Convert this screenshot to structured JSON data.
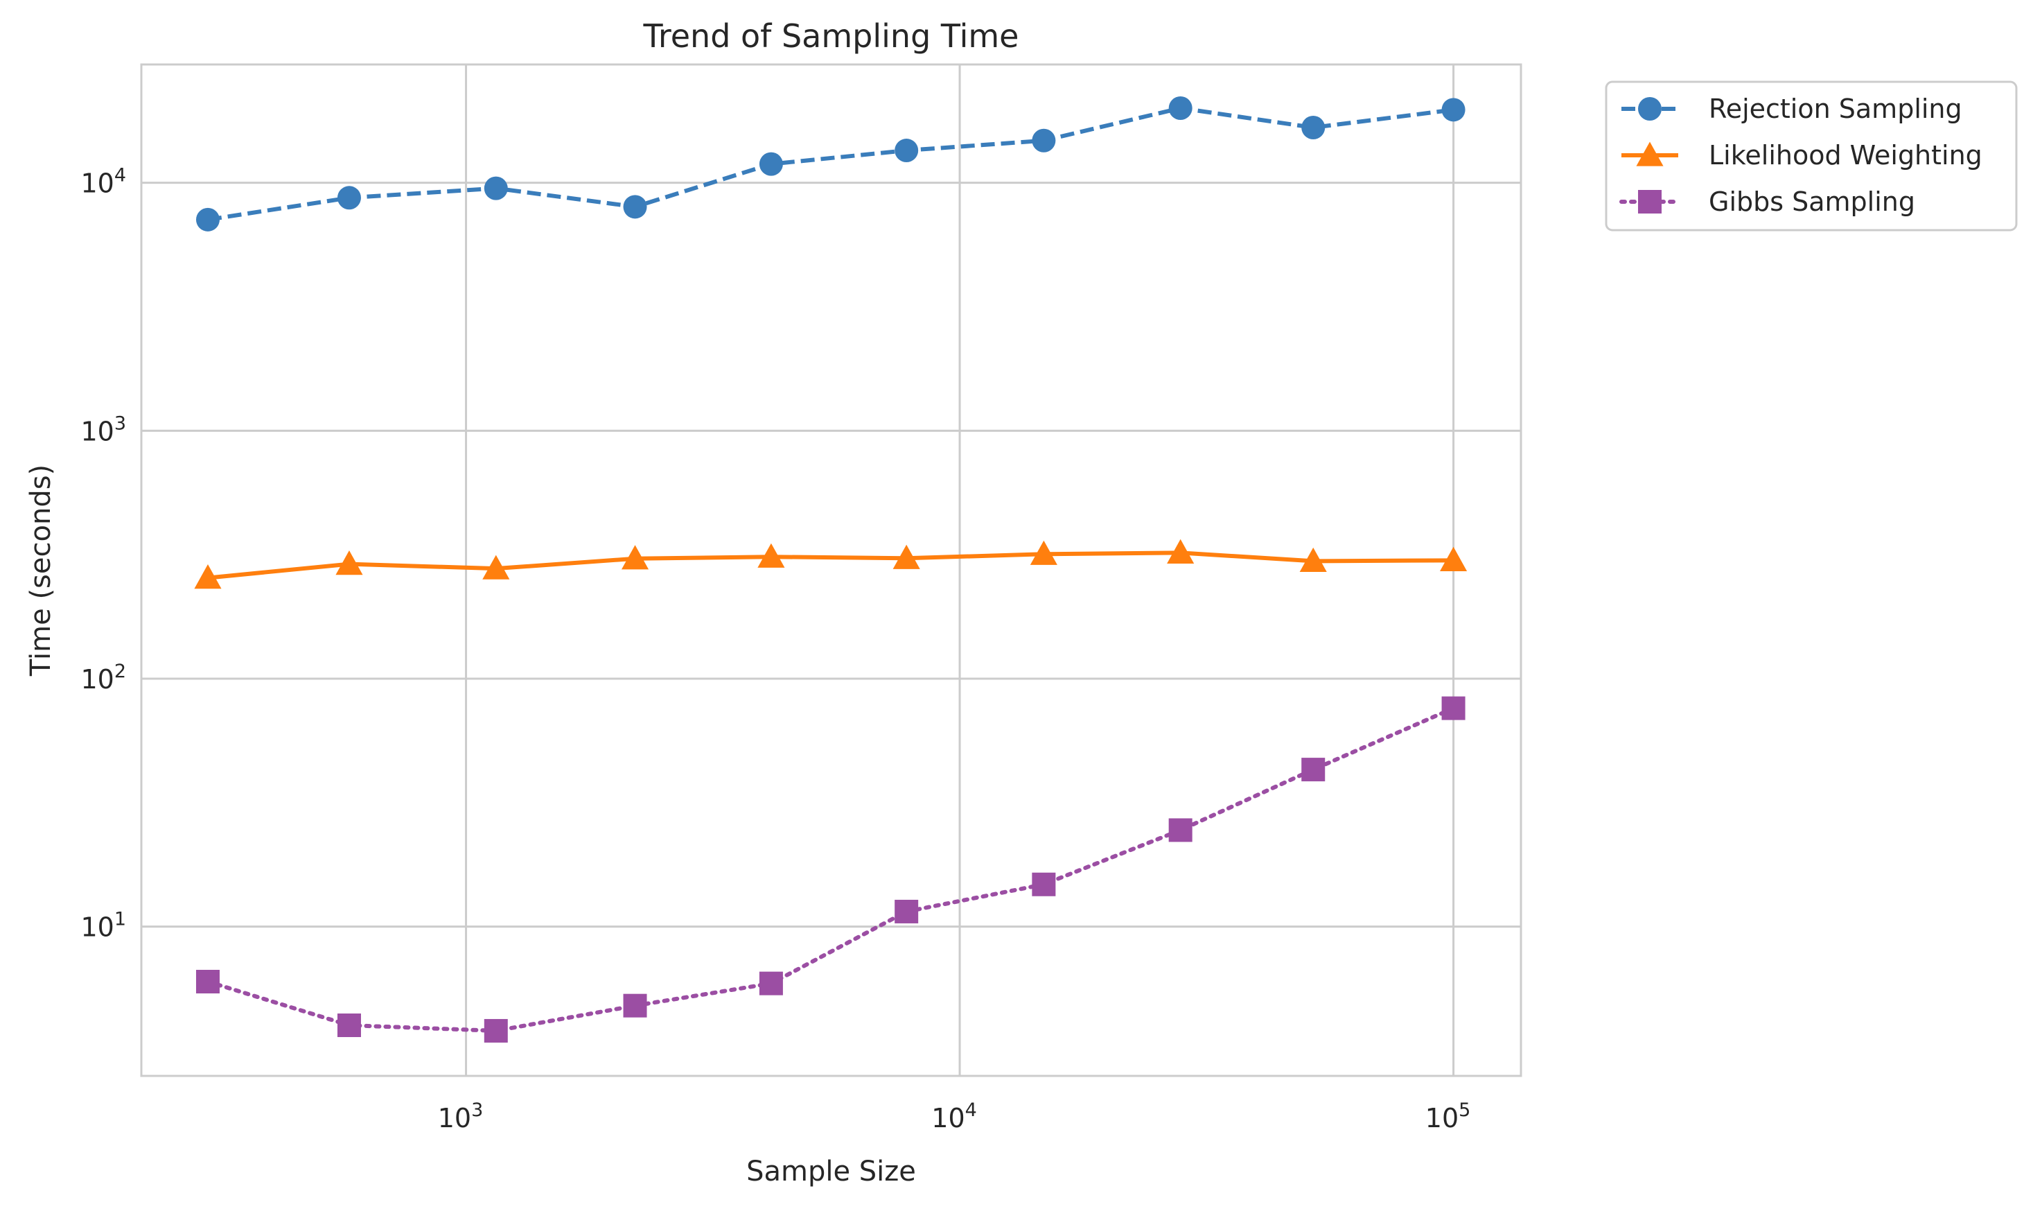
{
  "chart_data": {
    "type": "line",
    "title": "Trend of Sampling Time",
    "xlabel": "Sample Size",
    "ylabel": "Time (seconds)",
    "xscale": "log",
    "yscale": "log",
    "xlim": [
      220,
      137000
    ],
    "ylim": [
      2.5,
      30000
    ],
    "x": [
      300,
      580,
      1150,
      2200,
      4150,
      7800,
      14800,
      28000,
      52000,
      100000
    ],
    "xticks": [
      {
        "value": 1000,
        "base": "10",
        "exp": "3"
      },
      {
        "value": 10000,
        "base": "10",
        "exp": "4"
      },
      {
        "value": 100000,
        "base": "10",
        "exp": "5"
      }
    ],
    "yticks": [
      {
        "value": 10,
        "base": "10",
        "exp": "1"
      },
      {
        "value": 100,
        "base": "10",
        "exp": "2"
      },
      {
        "value": 1000,
        "base": "10",
        "exp": "3"
      },
      {
        "value": 10000,
        "base": "10",
        "exp": "4"
      }
    ],
    "grid": true,
    "legend_position": "outside-top-right",
    "series": [
      {
        "name": "Rejection Sampling",
        "color": "#3a7dbb",
        "marker": "circle",
        "linestyle": "dashed",
        "values": [
          7100,
          8700,
          9500,
          8000,
          11900,
          13500,
          14800,
          20000,
          16700,
          19700
        ]
      },
      {
        "name": "Likelihood Weighting",
        "color": "#ff7f0e",
        "marker": "triangle",
        "linestyle": "solid",
        "values": [
          255,
          290,
          278,
          305,
          310,
          306,
          318,
          322,
          298,
          300
        ]
      },
      {
        "name": "Gibbs Sampling",
        "color": "#9b4ea3",
        "marker": "square",
        "linestyle": "dotted",
        "values": [
          6.0,
          4.0,
          3.8,
          4.8,
          5.9,
          11.5,
          14.8,
          24.5,
          43.0,
          76.0
        ]
      }
    ]
  }
}
